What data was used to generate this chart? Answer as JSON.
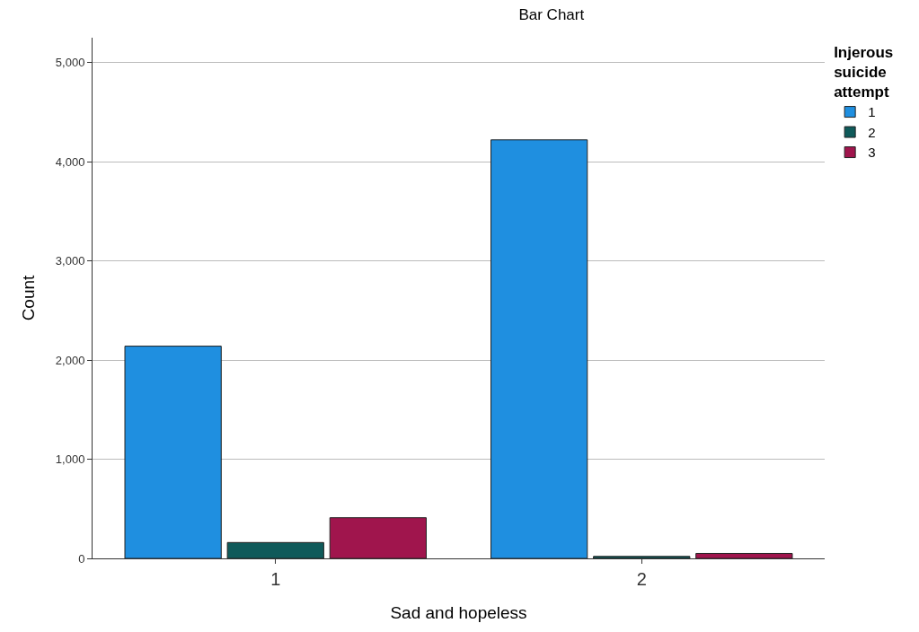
{
  "chart_data": {
    "type": "bar",
    "title": "Bar Chart",
    "xlabel": "Sad and hopeless",
    "ylabel": "Count",
    "legend_title": "Injerous suicide attempt",
    "categories": [
      "1",
      "2"
    ],
    "series": [
      {
        "name": "1",
        "color": "#1f8fe0",
        "values": [
          2140,
          4220
        ]
      },
      {
        "name": "2",
        "color": "#0f5a5a",
        "values": [
          160,
          20
        ]
      },
      {
        "name": "3",
        "color": "#a0154d",
        "values": [
          410,
          50
        ]
      }
    ],
    "ylim": [
      0,
      5250
    ],
    "yticks": [
      {
        "value": 0,
        "label": "0"
      },
      {
        "value": 1000,
        "label": "1,000"
      },
      {
        "value": 2000,
        "label": "2,000"
      },
      {
        "value": 3000,
        "label": "3,000"
      },
      {
        "value": 4000,
        "label": "4,000"
      },
      {
        "value": 5000,
        "label": "5,000"
      }
    ],
    "grid": "y",
    "legend": "top right"
  }
}
